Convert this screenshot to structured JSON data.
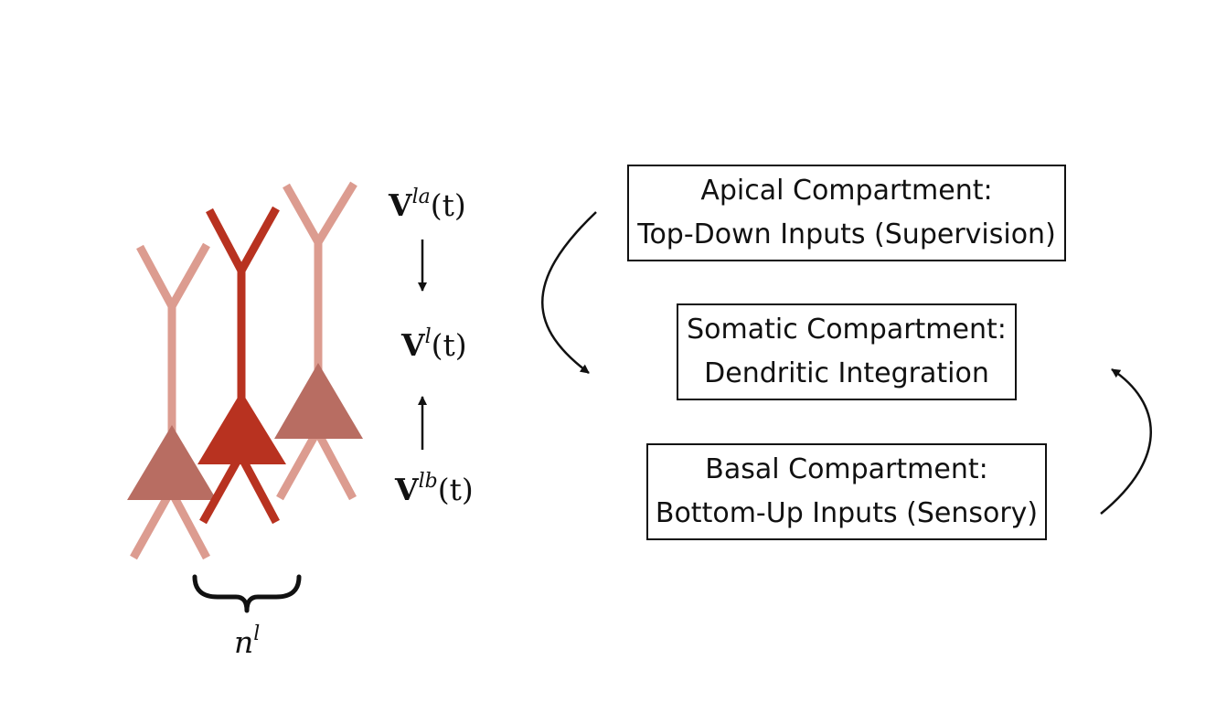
{
  "colors": {
    "neuron_main": "#b83220",
    "neuron_faded_dendrite": "#dc9c90",
    "neuron_faded_soma": "#b86d62",
    "ink": "#111111"
  },
  "variables": {
    "apical": {
      "symbol": "V",
      "superscript": "la",
      "argument": "(t)"
    },
    "somatic": {
      "symbol": "V",
      "superscript": "l",
      "argument": "(t)"
    },
    "basal": {
      "symbol": "V",
      "superscript": "lb",
      "argument": "(t)"
    }
  },
  "brace_label": {
    "symbol": "n",
    "superscript": "l"
  },
  "compartments": [
    {
      "title": "Apical Compartment:",
      "subtitle": "Top-Down Inputs (Supervision)"
    },
    {
      "title": "Somatic Compartment:",
      "subtitle": "Dendritic Integration"
    },
    {
      "title": "Basal Compartment:",
      "subtitle": "Bottom-Up Inputs (Sensory)"
    }
  ]
}
